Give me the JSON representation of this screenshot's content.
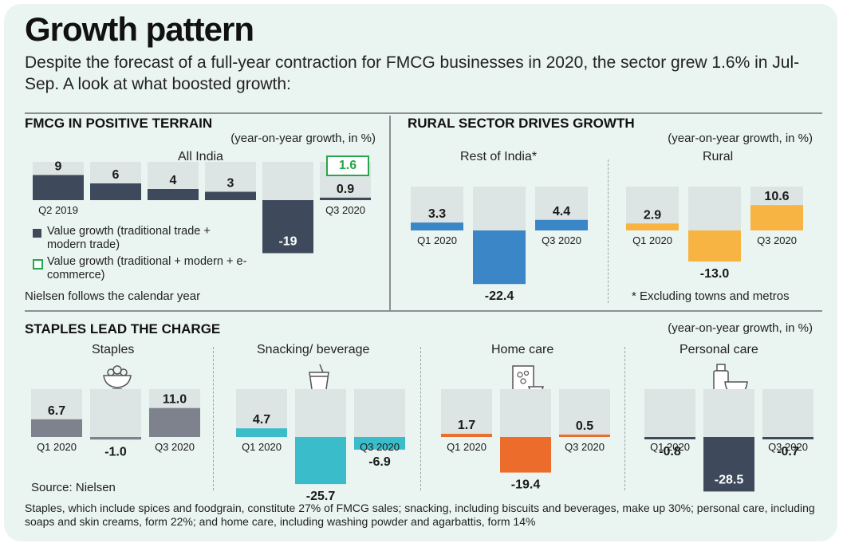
{
  "header": {
    "title": "Growth pattern",
    "subtitle": "Despite the forecast of a full-year contraction for FMCG businesses in 2020, the sector grew 1.6% in Jul-Sep. A look at what boosted growth:"
  },
  "colors": {
    "background": "#eaf4f1",
    "shade": "#dce5e3",
    "fmcg": "#3e4a5c",
    "ecommerce_box": "#27a64b",
    "rural_blue": "#3b86c6",
    "rural_orange": "#f7b443",
    "staples": "#7d828d",
    "snacking": "#3bbcca",
    "home_care": "#ec6d2b",
    "personal_care": "#3e4a5c"
  },
  "fmcg": {
    "section_title": "FMCG IN POSITIVE TERRAIN",
    "unit_label": "(year-on-year growth, in %)",
    "panel_title": "All India",
    "ecommerce_value": "1.6",
    "legend": {
      "item1": "Value growth (traditional trade + modern trade)",
      "item2": "Value growth (traditional + modern + e-commerce)"
    },
    "note": "Nielsen follows the calendar year"
  },
  "rural": {
    "section_title": "RURAL SECTOR DRIVES GROWTH",
    "unit_label": "(year-on-year growth, in %)",
    "note": "* Excluding towns and metros"
  },
  "staples_section": {
    "section_title": "STAPLES LEAD THE CHARGE",
    "unit_label": "(year-on-year growth, in %)"
  },
  "source": "Source: Nielsen",
  "footnote": "Staples, which include spices and foodgrain, constitute 27% of FMCG sales; snacking, including biscuits and beverages, make up 30%; personal care, including soaps and skin creams, form 22%; and home care, including washing powder and agarbattis, form 14%",
  "chart_data": [
    {
      "id": "all-india",
      "type": "bar",
      "title": "All India",
      "ylabel": "(year-on-year growth, in %)",
      "categories": [
        "Q2 2019",
        "",
        "",
        "",
        "",
        "Q3 2020"
      ],
      "values": [
        9,
        6,
        4,
        3,
        -19,
        0.9
      ],
      "value_labels": [
        "9",
        "6",
        "4",
        "3",
        "-19",
        "0.9"
      ],
      "series": [
        {
          "name": "Value growth (traditional trade + modern trade)",
          "values": [
            9,
            6,
            4,
            3,
            -19,
            0.9
          ]
        }
      ]
    },
    {
      "id": "rest-of-india",
      "type": "bar",
      "title": "Rest of India*",
      "categories": [
        "Q1 2020",
        "",
        "Q3 2020"
      ],
      "values": [
        3.3,
        -22.4,
        4.4
      ],
      "value_labels": [
        "3.3",
        "-22.4",
        "4.4"
      ]
    },
    {
      "id": "rural",
      "type": "bar",
      "title": "Rural",
      "categories": [
        "Q1 2020",
        "",
        "Q3 2020"
      ],
      "values": [
        2.9,
        -13.0,
        10.6
      ],
      "value_labels": [
        "2.9",
        "-13.0",
        "10.6"
      ]
    },
    {
      "id": "staples",
      "type": "bar",
      "title": "Staples",
      "categories": [
        "Q1 2020",
        "",
        "Q3 2020"
      ],
      "values": [
        6.7,
        -1.0,
        11.0
      ],
      "value_labels": [
        "6.7",
        "-1.0",
        "11.0"
      ]
    },
    {
      "id": "snacking",
      "type": "bar",
      "title": "Snacking/ beverage",
      "categories": [
        "Q1 2020",
        "",
        "Q3 2020"
      ],
      "values": [
        4.7,
        -25.7,
        -6.9
      ],
      "value_labels": [
        "4.7",
        "-25.7",
        "-6.9"
      ]
    },
    {
      "id": "home-care",
      "type": "bar",
      "title": "Home care",
      "categories": [
        "Q1 2020",
        "",
        "Q3 2020"
      ],
      "values": [
        1.7,
        -19.4,
        0.5
      ],
      "value_labels": [
        "1.7",
        "-19.4",
        "0.5"
      ]
    },
    {
      "id": "personal-care",
      "type": "bar",
      "title": "Personal care",
      "categories": [
        "Q1 2020",
        "",
        "Q3 2020"
      ],
      "values": [
        -0.8,
        -28.5,
        -0.7
      ],
      "value_labels": [
        "-0.8",
        "-28.5",
        "-0.7"
      ]
    }
  ]
}
